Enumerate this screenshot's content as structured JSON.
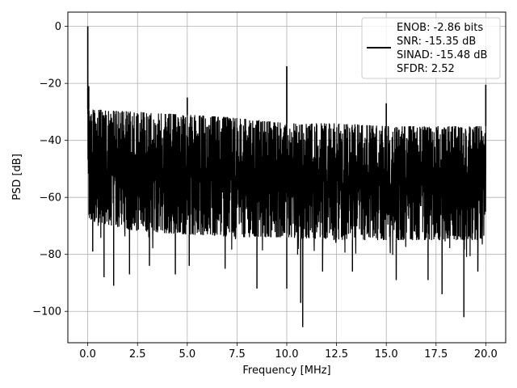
{
  "chart_data": {
    "type": "line",
    "xlabel": "Frequency [MHz]",
    "ylabel": "PSD [dB]",
    "xlim": [
      -1.0,
      21.0
    ],
    "ylim": [
      -111,
      5
    ],
    "x_ticks": [
      0.0,
      2.5,
      5.0,
      7.5,
      10.0,
      12.5,
      15.0,
      17.5,
      20.0
    ],
    "x_tick_labels": [
      "0.0",
      "2.5",
      "5.0",
      "7.5",
      "10.0",
      "12.5",
      "15.0",
      "17.5",
      "20.0"
    ],
    "y_ticks": [
      0,
      -20,
      -40,
      -60,
      -80,
      -100
    ],
    "y_tick_labels": [
      "0",
      "−20",
      "−40",
      "−60",
      "−80",
      "−100"
    ],
    "grid": true,
    "legend_position": "top-right",
    "series_color": "#000000",
    "legend": {
      "lines": [
        "ENOB: -2.86 bits",
        "SNR: -15.35 dB",
        "SINAD: -15.48 dB",
        "SFDR: 2.52"
      ]
    },
    "series": [
      {
        "x_range": [
          0.0,
          20.0
        ],
        "noise_band": {
          "upper_envelope": [
            [
              0.0,
              -29
            ],
            [
              2.5,
              -30
            ],
            [
              5.0,
              -31
            ],
            [
              7.5,
              -32
            ],
            [
              10.0,
              -34
            ],
            [
              12.5,
              -34
            ],
            [
              15.0,
              -35
            ],
            [
              17.5,
              -35
            ],
            [
              20.0,
              -35
            ]
          ],
          "lower_envelope": [
            [
              0.0,
              -68
            ],
            [
              2.5,
              -72
            ],
            [
              5.0,
              -73
            ],
            [
              7.5,
              -74
            ],
            [
              10.0,
              -74
            ],
            [
              12.5,
              -75
            ],
            [
              15.0,
              -75
            ],
            [
              17.5,
              -75
            ],
            [
              20.0,
              -75
            ]
          ],
          "minima": [
            [
              0.25,
              -79
            ],
            [
              0.82,
              -88
            ],
            [
              1.3,
              -91
            ],
            [
              2.1,
              -87
            ],
            [
              3.1,
              -84
            ],
            [
              4.4,
              -87
            ],
            [
              5.1,
              -84
            ],
            [
              6.9,
              -85
            ],
            [
              8.5,
              -92
            ],
            [
              10.0,
              -92
            ],
            [
              10.7,
              -97
            ],
            [
              10.8,
              -105.5
            ],
            [
              11.8,
              -86
            ],
            [
              13.3,
              -86
            ],
            [
              15.5,
              -89
            ],
            [
              17.1,
              -89
            ],
            [
              17.8,
              -94
            ],
            [
              18.9,
              -102
            ],
            [
              19.6,
              -86
            ]
          ]
        },
        "peaks": [
          [
            0.0,
            0
          ],
          [
            0.05,
            -21
          ],
          [
            5.0,
            -25
          ],
          [
            10.0,
            -14
          ],
          [
            15.0,
            -27
          ],
          [
            20.0,
            -20.5
          ]
        ]
      }
    ]
  }
}
